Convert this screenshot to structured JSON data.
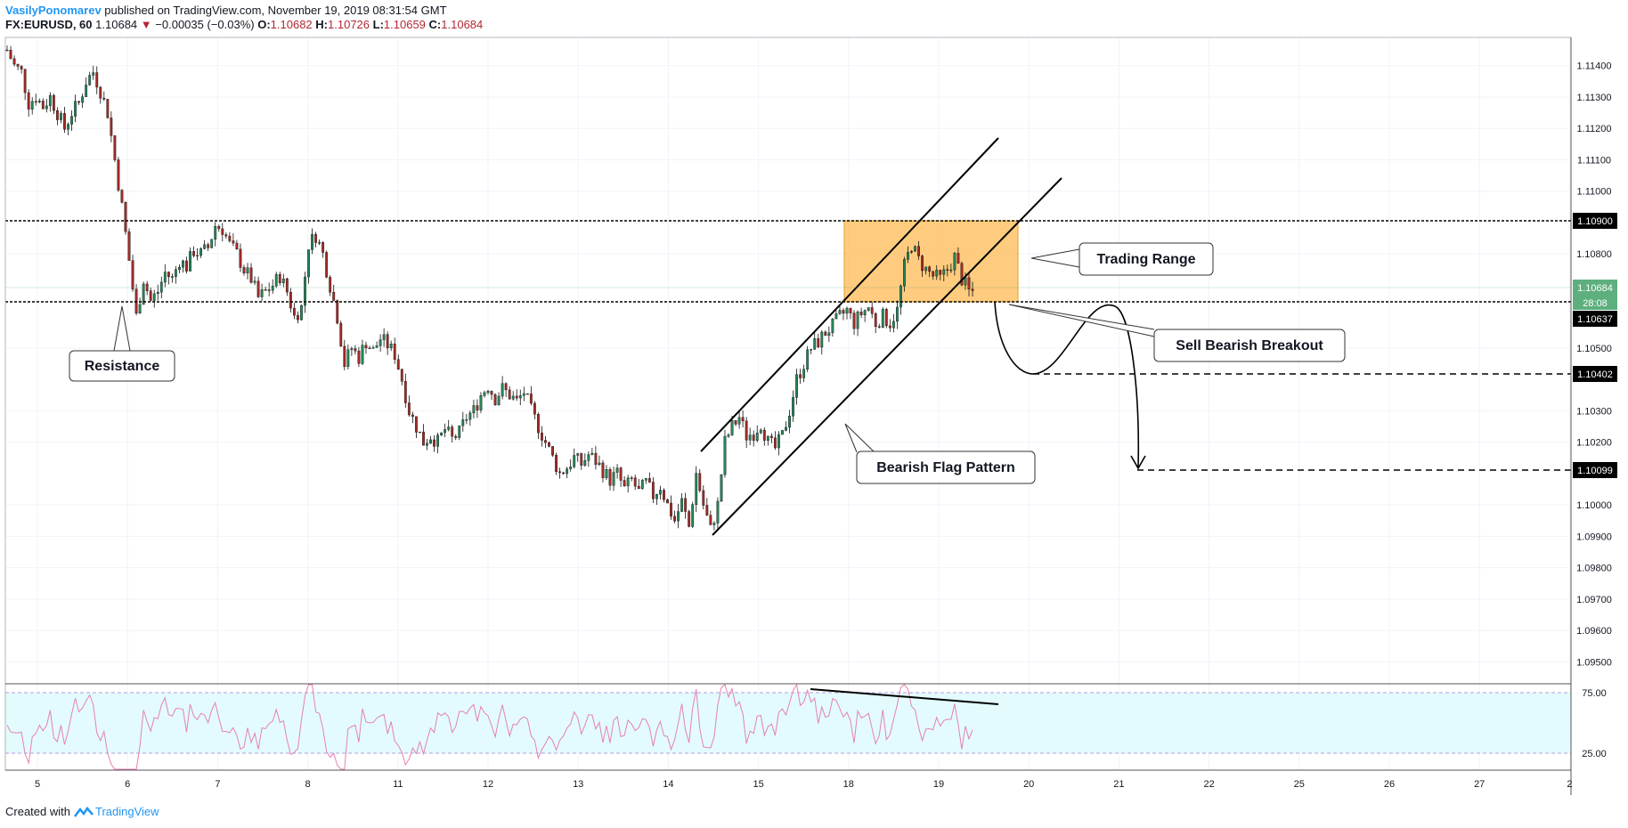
{
  "header": {
    "author": "VasilyPonomarev",
    "published": "published on TradingView.com, November 19, 2019 08:31:54 GMT",
    "symbol": "FX:EURUSD, 60",
    "last": "1.10684",
    "down_arrow": "▼",
    "change": "−0.00035 (−0.03%)",
    "o_label": "O:",
    "o_value": "1.10682",
    "h_label": "H:",
    "h_value": "1.10726",
    "l_label": "L:",
    "l_value": "1.10659",
    "c_label": "C:",
    "c_value": "1.10684"
  },
  "footer": {
    "created_with": "Created with",
    "brand": "TradingView"
  },
  "colors": {
    "bull": "#26865a",
    "bear": "#a52a25",
    "orange": "#ffb84d",
    "rsi_band": "#e3fbfc",
    "rsi_line": "#e680b5",
    "price_tag": "#5eaf7e"
  },
  "chart_data": [
    {
      "type": "candlestick",
      "title": "",
      "x_ticks": [
        "5",
        "6",
        "7",
        "8",
        "11",
        "12",
        "13",
        "14",
        "15",
        "18",
        "19",
        "20",
        "21",
        "22",
        "25",
        "26",
        "27",
        "2"
      ],
      "y_ticks": [
        "1.11400",
        "1.11300",
        "1.11200",
        "1.11100",
        "1.11000",
        "1.10800",
        "1.10500",
        "1.10300",
        "1.10200",
        "1.10000",
        "1.09900",
        "1.09800",
        "1.09700",
        "1.09600",
        "1.09500"
      ],
      "ylim": [
        1.0943,
        1.1149
      ],
      "grid": true,
      "series_close": [
        1.1145,
        1.114,
        1.1138,
        1.1128,
        1.113,
        1.1127,
        1.113,
        1.1125,
        1.112,
        1.1125,
        1.1128,
        1.1135,
        1.1138,
        1.1132,
        1.1125,
        1.111,
        1.1095,
        1.1078,
        1.106,
        1.1072,
        1.1065,
        1.1068,
        1.1074,
        1.1072,
        1.1078,
        1.1076,
        1.1081,
        1.108,
        1.1082,
        1.1089,
        1.1088,
        1.1083,
        1.108,
        1.1075,
        1.1072,
        1.1066,
        1.1068,
        1.107,
        1.1073,
        1.1068,
        1.106,
        1.1063,
        1.1083,
        1.1086,
        1.108,
        1.107,
        1.106,
        1.1045,
        1.105,
        1.1047,
        1.1052,
        1.1049,
        1.1053,
        1.1051,
        1.1048,
        1.104,
        1.103,
        1.1025,
        1.102,
        1.1022,
        1.102,
        1.1024,
        1.1021,
        1.1023,
        1.1028,
        1.103,
        1.1035,
        1.1038,
        1.1034,
        1.1037,
        1.1035,
        1.1033,
        1.1036,
        1.103,
        1.1025,
        1.102,
        1.1015,
        1.101,
        1.1012,
        1.1015,
        1.1013,
        1.1016,
        1.1014,
        1.1011,
        1.1008,
        1.101,
        1.1005,
        1.1008,
        1.1004,
        1.1007,
        1.1003,
        1.1006,
        1.1,
        1.0995,
        1.1001,
        1.0993,
        1.101,
        1.1,
        1.0992,
        1.1,
        1.102,
        1.1025,
        1.1028,
        1.1022,
        1.1023,
        1.1026,
        1.102,
        1.1018,
        1.1022,
        1.103,
        1.104,
        1.1045,
        1.105,
        1.1052,
        1.1055,
        1.1057,
        1.106,
        1.1062,
        1.1058,
        1.1061,
        1.1063,
        1.1058,
        1.106,
        1.1058,
        1.1062,
        1.1076,
        1.1083,
        1.1078,
        1.1075,
        1.1073,
        1.1072,
        1.1075,
        1.1079,
        1.1072,
        1.1068
      ]
    },
    {
      "type": "area",
      "title": "",
      "y_ticks": [
        "75.00",
        "25.00"
      ],
      "ylim": [
        0,
        100
      ],
      "band": [
        25,
        75
      ]
    }
  ],
  "annotations": {
    "resistance": "Resistance",
    "trading_range": "Trading Range",
    "sell_breakout": "Sell Bearish Breakout",
    "bearish_flag": "Bearish Flag Pattern"
  },
  "price_tags": {
    "p1": "1.10900",
    "current": "1.10684",
    "countdown": "28:08",
    "p2": "1.10637",
    "p3": "1.10402",
    "p4": "1.10099"
  }
}
